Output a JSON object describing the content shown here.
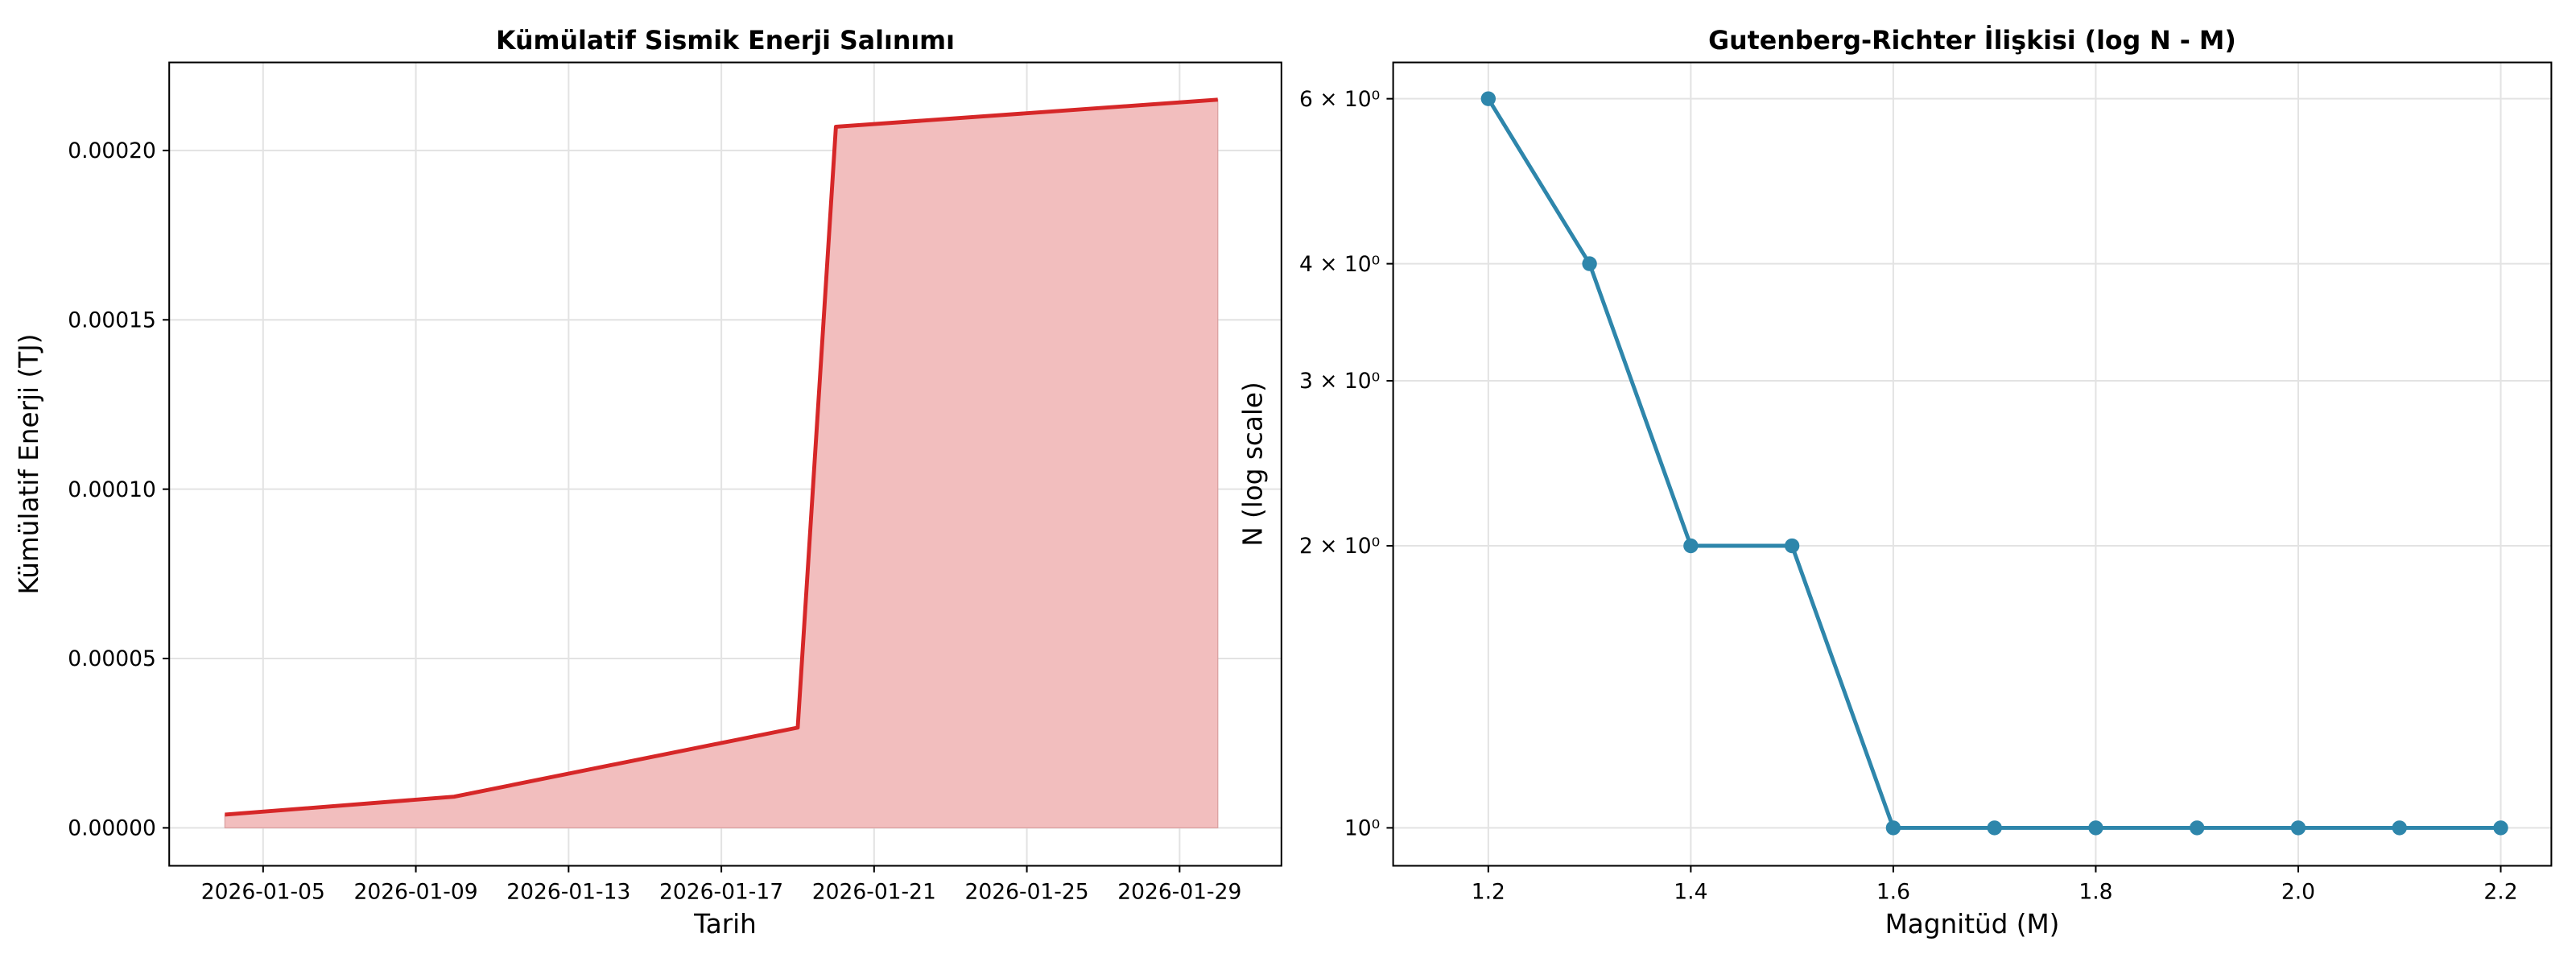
{
  "chart_data": [
    {
      "type": "area",
      "title": "Kümülatif Sismik Enerji Salınımı",
      "xlabel": "Tarih",
      "ylabel": "Kümülatif Enerji (TJ)",
      "x": [
        "2026-01-04",
        "2026-01-10",
        "2026-01-19",
        "2026-01-20",
        "2026-01-30"
      ],
      "values": [
        3.9e-06,
        9.2e-06,
        2.96e-05,
        0.000207,
        0.000215
      ],
      "color": "#d62728",
      "fill_color": "#f2bebe",
      "xlim": [
        "2026-01-02T13:00",
        "2026-01-31T16:00"
      ],
      "xticks": [
        "2026-01-05",
        "2026-01-09",
        "2026-01-13",
        "2026-01-17",
        "2026-01-21",
        "2026-01-25",
        "2026-01-29"
      ],
      "ylim": [
        -1.12e-05,
        0.000226
      ],
      "yticks": [
        {
          "value": 0,
          "label": "0.00000"
        },
        {
          "value": 5e-05,
          "label": "0.00005"
        },
        {
          "value": 0.0001,
          "label": "0.00010"
        },
        {
          "value": 0.00015,
          "label": "0.00015"
        },
        {
          "value": 0.0002,
          "label": "0.00020"
        }
      ],
      "grid": true
    },
    {
      "type": "line",
      "title": "Gutenberg-Richter İlişkisi (log N - M)",
      "xlabel": "Magnitüd (M)",
      "ylabel": "N (log scale)",
      "x": [
        1.2,
        1.3,
        1.4,
        1.5,
        1.6,
        1.7,
        1.8,
        1.9,
        2.0,
        2.1,
        2.2
      ],
      "values": [
        6,
        4,
        2,
        2,
        1,
        1,
        1,
        1,
        1,
        1,
        1
      ],
      "color": "#2e86ab",
      "log_y": true,
      "xlim": [
        1.106,
        2.25
      ],
      "xticks": [
        1.2,
        1.4,
        1.6,
        1.8,
        {
          "value": 2,
          "label": "2.0"
        },
        2.2
      ],
      "ylim": [
        0.911,
        6.56
      ],
      "yticks": [
        {
          "value": 1,
          "label": "10⁰"
        },
        {
          "value": 2,
          "label": "2 × 10⁰"
        },
        {
          "value": 3,
          "label": "3 × 10⁰"
        },
        {
          "value": 4,
          "label": "4 × 10⁰"
        },
        {
          "value": 6,
          "label": "6 × 10⁰"
        }
      ],
      "grid": true
    }
  ]
}
